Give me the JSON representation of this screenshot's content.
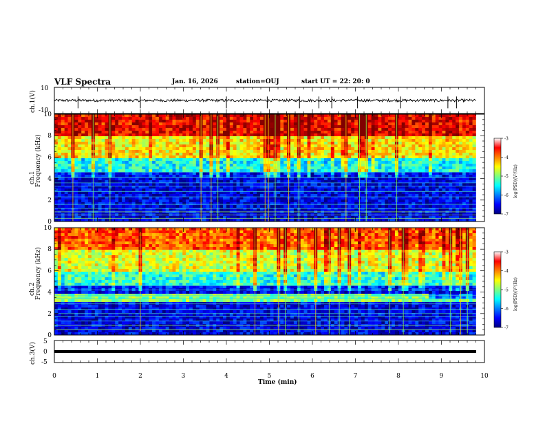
{
  "header": {
    "title": "VLF Spectra",
    "date": "Jan. 16, 2026",
    "station": "station=OUJ",
    "start_ut": "start  UT =   22: 20: 0"
  },
  "chart_data": [
    {
      "type": "line",
      "panel": "ch1-waveform",
      "ylabel": "ch.1(V)",
      "ylim": [
        -10,
        10
      ],
      "yticks": [
        "10",
        "-10"
      ],
      "xlim": [
        0,
        10
      ],
      "series": [
        {
          "name": "ch.1 waveform",
          "baseline": 0,
          "typical_amplitude": 1,
          "spikes_at_min": [
            0.55,
            2.0,
            4.0,
            4.95,
            5.7,
            6.15,
            6.45,
            7.05,
            8.05,
            9.15,
            9.35
          ]
        }
      ]
    },
    {
      "type": "heatmap",
      "panel": "ch1-spectrogram",
      "ylabel_line1": "ch.1",
      "ylabel_line2": "Frequency (kHz)",
      "ylim": [
        0,
        10
      ],
      "yticks": [
        "0",
        "2",
        "4",
        "6",
        "8",
        "10"
      ],
      "xlim": [
        0,
        10
      ],
      "colorbar": {
        "label": "log(PSD)(V²/Hz)",
        "range": [
          -7,
          -3
        ],
        "ticks": [
          "-3",
          "-4",
          "-5",
          "-6",
          "-7"
        ]
      },
      "band_levels": [
        {
          "freq_khz": [
            8,
            10
          ],
          "log_psd": -3.6
        },
        {
          "freq_khz": [
            6,
            8
          ],
          "log_psd": -4.6
        },
        {
          "freq_khz": [
            4.5,
            6
          ],
          "log_psd": -5.6
        },
        {
          "freq_khz": [
            0,
            4.5
          ],
          "log_psd": -6.6
        }
      ],
      "tone_lines_khz": [
        0.3,
        0.6,
        0.9,
        1.2,
        1.6,
        2.3,
        2.8,
        3.3,
        3.6,
        4.1,
        4.6
      ]
    },
    {
      "type": "heatmap",
      "panel": "ch2-spectrogram",
      "ylabel_line1": "ch.2",
      "ylabel_line2": "Frequency (kHz)",
      "ylim": [
        0,
        10
      ],
      "yticks": [
        "0",
        "2",
        "4",
        "6",
        "8",
        "10"
      ],
      "xlim": [
        0,
        10
      ],
      "colorbar": {
        "label": "log(PSD)(V²/Hz)",
        "range": [
          -7,
          -3
        ],
        "ticks": [
          "-3",
          "-4",
          "-5",
          "-6",
          "-7"
        ]
      },
      "band_levels": [
        {
          "freq_khz": [
            8,
            10
          ],
          "log_psd": -4.0
        },
        {
          "freq_khz": [
            6,
            8
          ],
          "log_psd": -4.8
        },
        {
          "freq_khz": [
            4.5,
            6
          ],
          "log_psd": -5.5
        },
        {
          "freq_khz": [
            3.2,
            3.8
          ],
          "log_psd": -5.0
        },
        {
          "freq_khz": [
            0,
            3.2
          ],
          "log_psd": -6.6
        }
      ],
      "tone_lines_khz": [
        0.5,
        0.9,
        1.3,
        1.7,
        2.0,
        2.4,
        2.9,
        3.4,
        3.7,
        4.2,
        4.6
      ]
    },
    {
      "type": "line",
      "panel": "ch3-waveform",
      "ylabel": "ch.3(V)",
      "ylim": [
        -5,
        5
      ],
      "yticks": [
        "5",
        "0",
        "-5"
      ],
      "xlim": [
        0,
        10
      ],
      "xlabel": "Time (min)",
      "xticks": [
        "0",
        "1",
        "2",
        "3",
        "4",
        "5",
        "6",
        "7",
        "8",
        "9",
        "10"
      ],
      "series": [
        {
          "name": "ch.3 waveform",
          "value_v": 0
        }
      ]
    }
  ]
}
